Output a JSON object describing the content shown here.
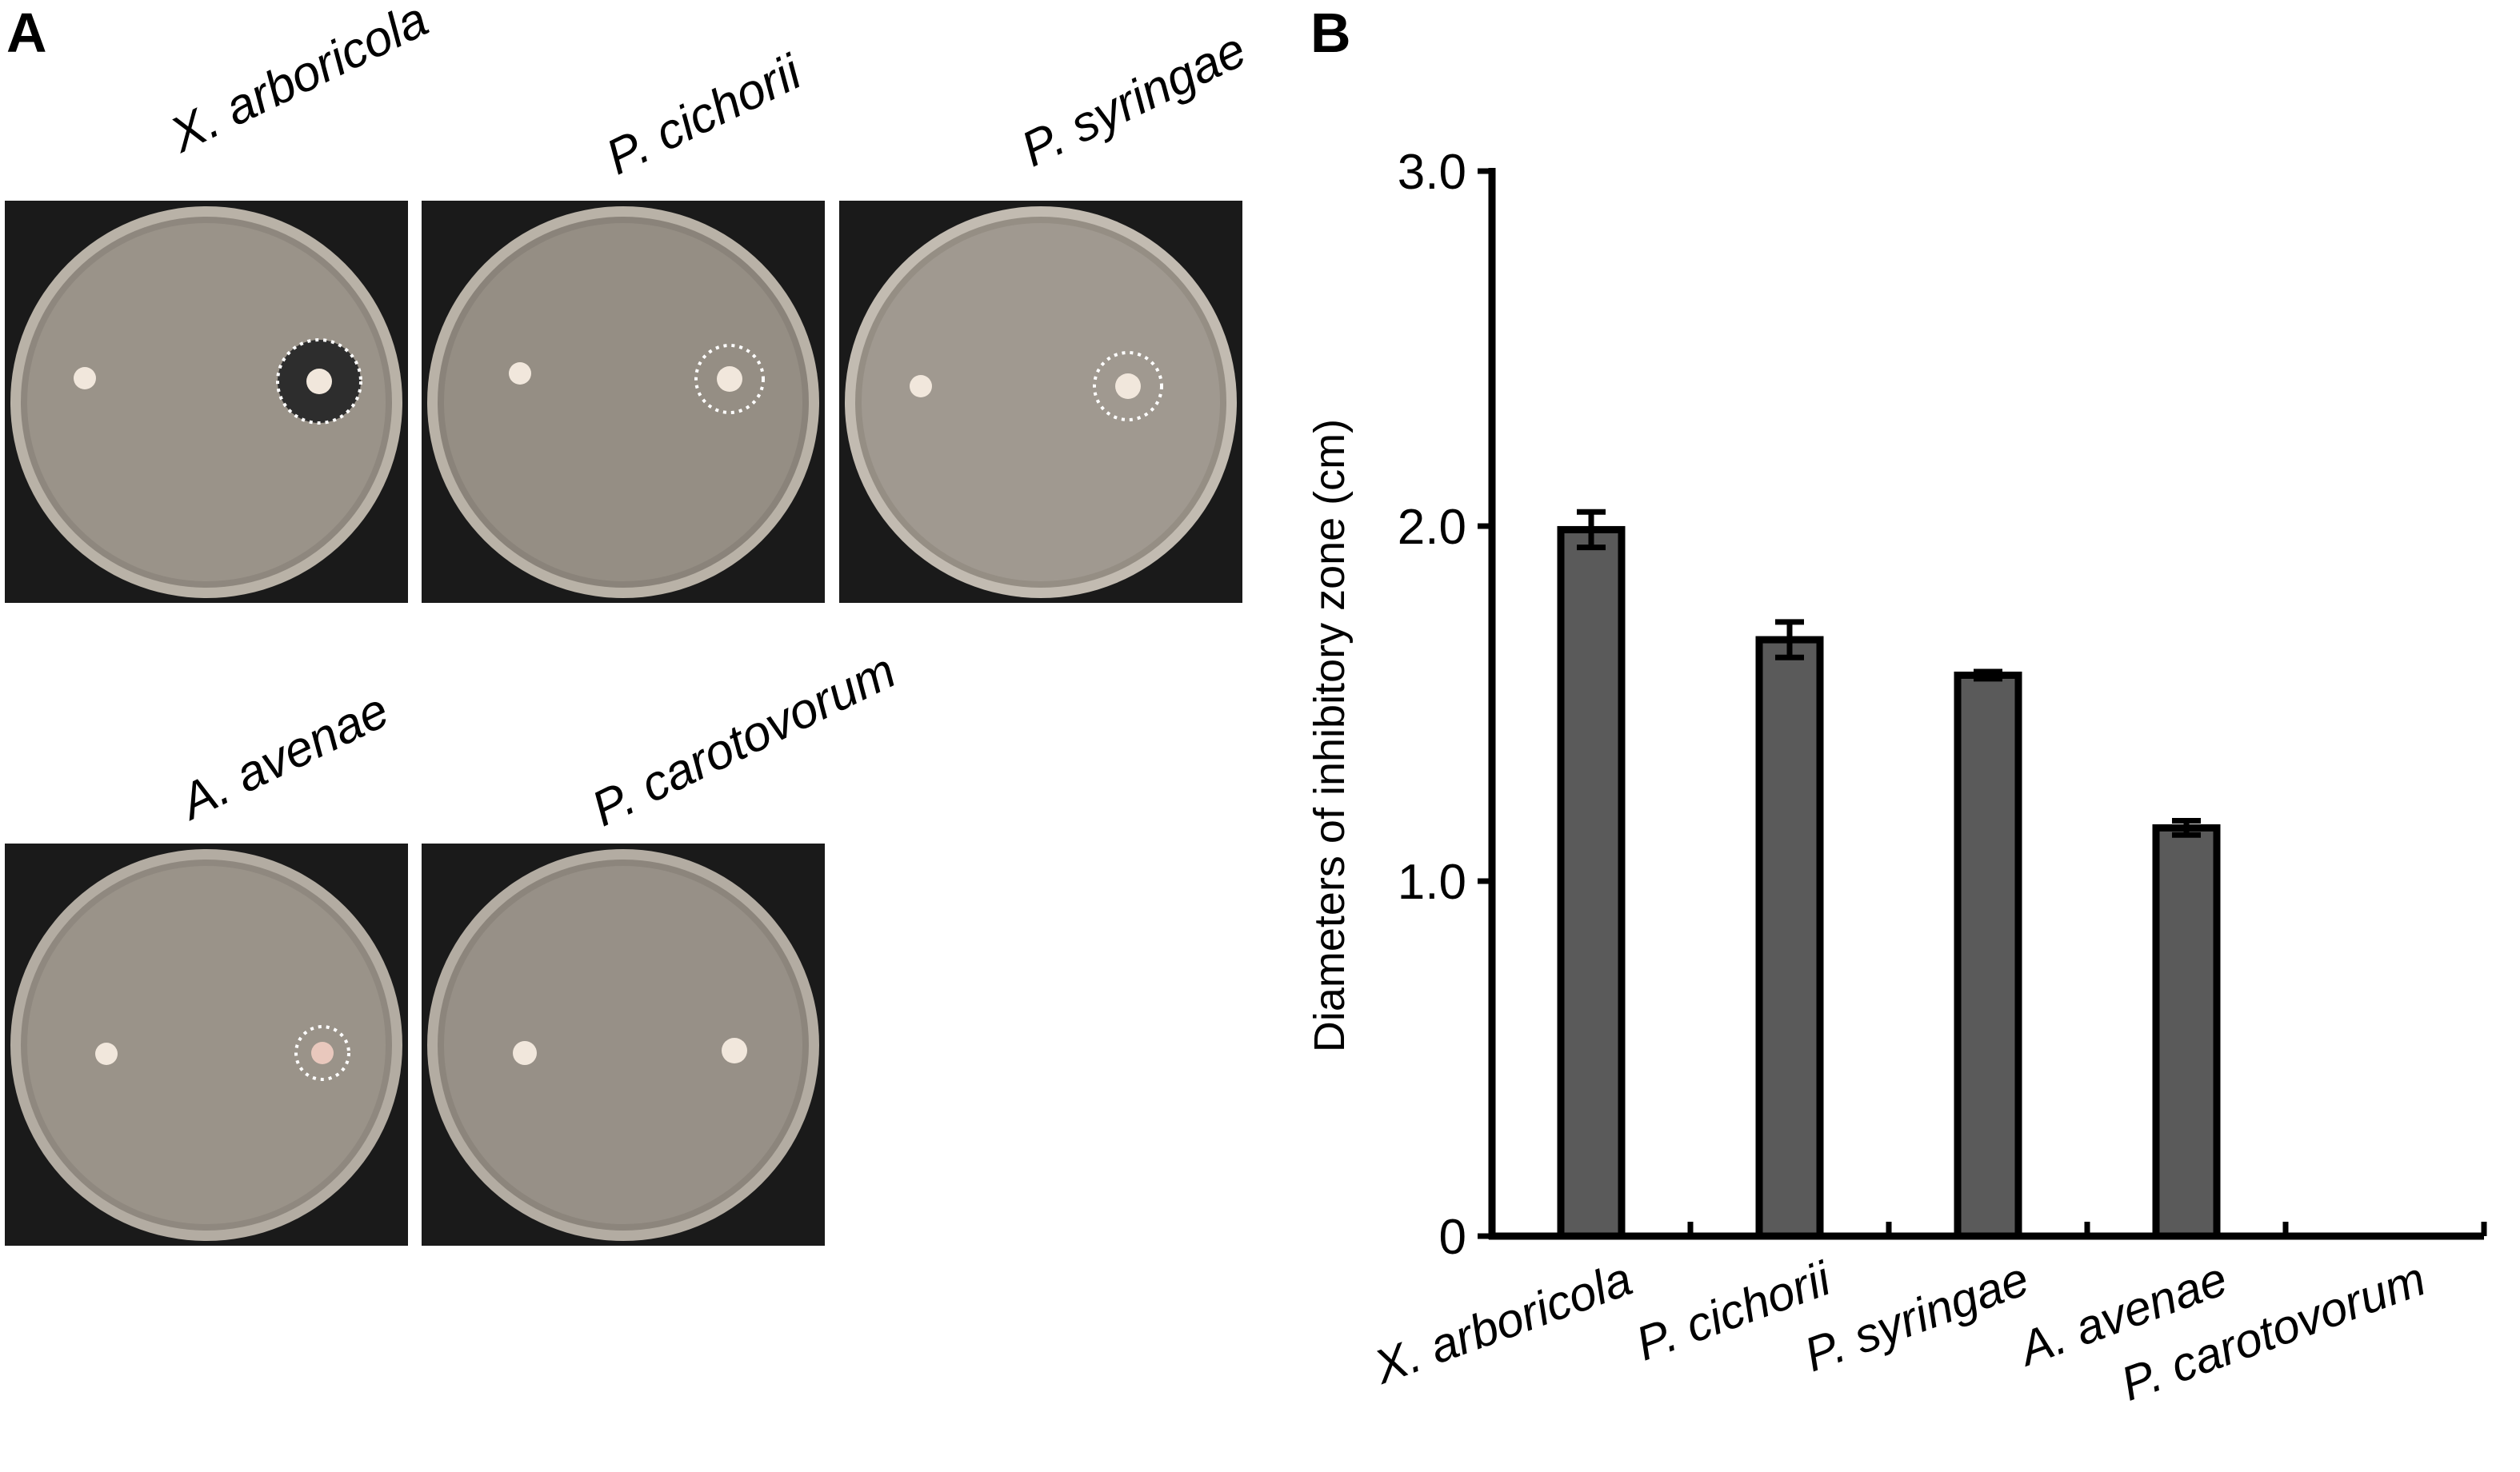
{
  "panels": {
    "a_label": "A",
    "b_label": "B"
  },
  "plates": [
    {
      "name": "X. arboricola",
      "inhibition": true
    },
    {
      "name": "P. cichorii",
      "inhibition": true
    },
    {
      "name": "P. syringae",
      "inhibition": true
    },
    {
      "name": "A. avenae",
      "inhibition": true
    },
    {
      "name": "P. carotovorum",
      "inhibition": false
    }
  ],
  "colors": {
    "bar_fill": "#5a5a5a",
    "bar_stroke": "#000000",
    "plate_bg": "#1a1a1a",
    "agar": "#8e877e"
  },
  "chart_data": {
    "type": "bar",
    "ylabel": "Diameters of inhibitory zone (cm)",
    "categories": [
      "X. arboricola",
      "P. cichorii",
      "P. syringae",
      "A. avenae",
      "P. carotovorum"
    ],
    "values": [
      1.99,
      1.68,
      1.58,
      1.15,
      0
    ],
    "errors": [
      0.05,
      0.05,
      0.01,
      0.02,
      0
    ],
    "ylim": [
      0,
      3.0
    ],
    "yticks": [
      0,
      1.0,
      2.0,
      3.0
    ],
    "ytick_labels": [
      "0",
      "1.0",
      "2.0",
      "3.0"
    ],
    "grid": false,
    "legend": "none"
  }
}
